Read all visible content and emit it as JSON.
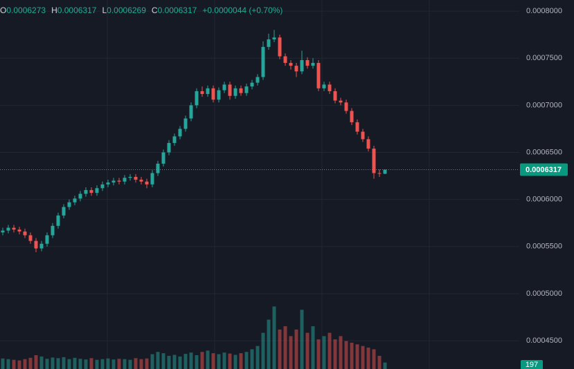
{
  "chart_data": {
    "type": "candlestick",
    "legend": [
      {
        "key": "O",
        "value": "0.0006273"
      },
      {
        "key": "H",
        "value": "0.0006317"
      },
      {
        "key": "L",
        "value": "0.0006269"
      },
      {
        "key": "C",
        "value": "0.0006317"
      }
    ],
    "change": "+0.0000044 (+0.70%)",
    "up_color": "#26a69a",
    "down_color": "#ef5350",
    "grid": true,
    "ylim": [
      0.00042,
      0.0008118
    ],
    "yticks": [
      {
        "value": 0.0008,
        "label": "0.0008000"
      },
      {
        "value": 0.00075,
        "label": "0.0007500"
      },
      {
        "value": 0.0007,
        "label": "0.0007000"
      },
      {
        "value": 0.00065,
        "label": "0.0006500"
      },
      {
        "value": 0.0006,
        "label": "0.0006000"
      },
      {
        "value": 0.00055,
        "label": "0.0005500"
      },
      {
        "value": 0.0005,
        "label": "0.0005000"
      },
      {
        "value": 0.00045,
        "label": "0.0004500"
      }
    ],
    "last_price": {
      "value": 0.0006317,
      "label": "0.0006317"
    },
    "open": [
      0.000565,
      0.000567,
      0.00057,
      0.000568,
      0.000566,
      0.000562,
      0.000556,
      0.000548,
      0.000553,
      0.000562,
      0.000572,
      0.000583,
      0.000592,
      0.000597,
      0.000601,
      0.000606,
      0.00061,
      0.000607,
      0.000612,
      0.000616,
      0.000618,
      0.00062,
      0.000619,
      0.000623,
      0.000624,
      0.000621,
      0.000619,
      0.000616,
      0.000628,
      0.000638,
      0.00065,
      0.00066,
      0.000667,
      0.000675,
      0.000686,
      0.0007,
      0.000715,
      0.000712,
      0.000718,
      0.000706,
      0.000716,
      0.000722,
      0.00071,
      0.000718,
      0.000713,
      0.00072,
      0.000724,
      0.00073,
      0.000762,
      0.00077,
      0.000772,
      0.000752,
      0.000745,
      0.000742,
      0.000736,
      0.000748,
      0.000742,
      0.000745,
      0.000718,
      0.000722,
      0.000715,
      0.000705,
      0.000703,
      0.000694,
      0.000682,
      0.000672,
      0.000664,
      0.000654,
      0.000628,
      0.0006273
    ],
    "high": [
      0.00057,
      0.000573,
      0.000573,
      0.000571,
      0.000569,
      0.000565,
      0.000559,
      0.000556,
      0.000565,
      0.000575,
      0.000586,
      0.000595,
      0.0006,
      0.000604,
      0.000609,
      0.000613,
      0.000613,
      0.000615,
      0.000619,
      0.000621,
      0.000623,
      0.000623,
      0.000626,
      0.000627,
      0.000627,
      0.000624,
      0.000622,
      0.000631,
      0.000641,
      0.000653,
      0.000663,
      0.00067,
      0.000678,
      0.000689,
      0.000703,
      0.000718,
      0.00072,
      0.000721,
      0.000721,
      0.000719,
      0.000725,
      0.000725,
      0.000721,
      0.000721,
      0.000723,
      0.000727,
      0.000733,
      0.000768,
      0.000776,
      0.00078,
      0.000775,
      0.000755,
      0.000748,
      0.000745,
      0.000758,
      0.000751,
      0.00075,
      0.000748,
      0.000725,
      0.000725,
      0.000718,
      0.000708,
      0.000706,
      0.000697,
      0.000685,
      0.000675,
      0.000667,
      0.000657,
      0.000632,
      0.0006317
    ],
    "low": [
      0.000562,
      0.000564,
      0.000565,
      0.000563,
      0.000559,
      0.000553,
      0.000544,
      0.000545,
      0.00055,
      0.000559,
      0.000569,
      0.00058,
      0.000589,
      0.000594,
      0.000598,
      0.000603,
      0.000604,
      0.000604,
      0.000609,
      0.000613,
      0.000615,
      0.000616,
      0.000616,
      0.00062,
      0.000618,
      0.000616,
      0.000612,
      0.000613,
      0.000625,
      0.000635,
      0.000647,
      0.000657,
      0.000664,
      0.000672,
      0.000683,
      0.000697,
      0.000709,
      0.000709,
      0.000703,
      0.000703,
      0.000713,
      0.000706,
      0.000707,
      0.00071,
      0.00071,
      0.000717,
      0.000721,
      0.000727,
      0.000759,
      0.000767,
      0.000749,
      0.000742,
      0.000738,
      0.00073,
      0.000733,
      0.000739,
      0.000739,
      0.000715,
      0.000715,
      0.000712,
      0.000702,
      0.0007,
      0.000691,
      0.000679,
      0.000669,
      0.000661,
      0.000651,
      0.000622,
      0.000624,
      0.0006269
    ],
    "close": [
      0.000567,
      0.00057,
      0.000568,
      0.000566,
      0.000562,
      0.000556,
      0.000548,
      0.000553,
      0.000562,
      0.000572,
      0.000583,
      0.000592,
      0.000597,
      0.000601,
      0.000606,
      0.00061,
      0.000607,
      0.000612,
      0.000616,
      0.000618,
      0.00062,
      0.000619,
      0.000623,
      0.000624,
      0.000621,
      0.000619,
      0.000616,
      0.000628,
      0.000638,
      0.00065,
      0.00066,
      0.000667,
      0.000675,
      0.000686,
      0.0007,
      0.000715,
      0.000712,
      0.000718,
      0.000706,
      0.000716,
      0.000722,
      0.00071,
      0.000718,
      0.000713,
      0.00072,
      0.000724,
      0.00073,
      0.000762,
      0.00077,
      0.000772,
      0.000752,
      0.000745,
      0.000742,
      0.000736,
      0.000748,
      0.000742,
      0.000745,
      0.000718,
      0.000722,
      0.000715,
      0.000705,
      0.000703,
      0.000694,
      0.000682,
      0.000672,
      0.000664,
      0.000654,
      0.000628,
      0.0006273,
      0.0006317
    ],
    "volume": [
      320,
      300,
      280,
      260,
      300,
      340,
      420,
      380,
      310,
      350,
      330,
      360,
      300,
      340,
      310,
      290,
      330,
      280,
      300,
      320,
      290,
      310,
      300,
      280,
      330,
      300,
      320,
      450,
      520,
      480,
      400,
      430,
      380,
      460,
      500,
      420,
      520,
      560,
      480,
      450,
      500,
      470,
      430,
      480,
      520,
      600,
      700,
      1100,
      1500,
      1900,
      1200,
      1300,
      1000,
      1200,
      1800,
      1100,
      1300,
      900,
      1000,
      1100,
      900,
      1000,
      850,
      800,
      750,
      700,
      650,
      600,
      400,
      197
    ],
    "vlim": [
      0,
      2100
    ]
  }
}
